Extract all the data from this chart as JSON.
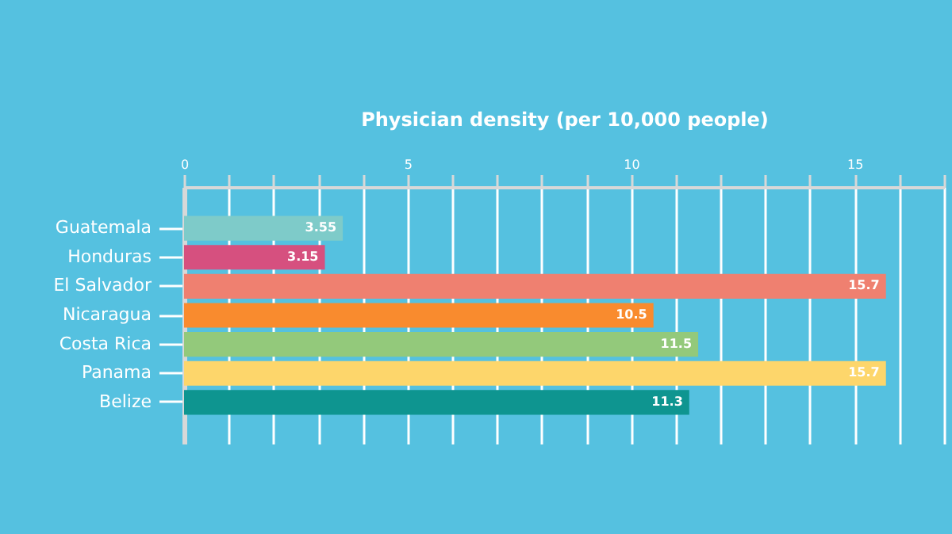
{
  "chart_data": {
    "type": "bar",
    "orientation": "horizontal",
    "xlabel": "Physician density (per 10,000 people)",
    "categories": [
      "Guatemala",
      "Honduras",
      "El Salvador",
      "Nicaragua",
      "Costa Rica",
      "Panama",
      "Belize"
    ],
    "values": [
      3.55,
      3.15,
      15.7,
      10.5,
      11.5,
      15.7,
      11.3
    ],
    "colors": [
      "#7ecbc9",
      "#d6507f",
      "#ef8070",
      "#f98b2e",
      "#93c97b",
      "#fdd66b",
      "#0e9590"
    ],
    "data_labels": true,
    "grid": "x",
    "xlim": [
      0,
      17
    ],
    "xticks": [
      0,
      {
        "value": 1,
        "label": null
      },
      {
        "value": 2,
        "label": null
      },
      {
        "value": 3,
        "label": null
      },
      {
        "value": 4,
        "label": null
      },
      5,
      {
        "value": 6,
        "label": null
      },
      {
        "value": 7,
        "label": null
      },
      {
        "value": 8,
        "label": null
      },
      {
        "value": 9,
        "label": null
      },
      10,
      {
        "value": 11,
        "label": null
      },
      {
        "value": 12,
        "label": null
      },
      {
        "value": 13,
        "label": null
      },
      {
        "value": 14,
        "label": null
      },
      15,
      {
        "value": 16,
        "label": null
      },
      {
        "value": 17,
        "label": null
      }
    ]
  }
}
